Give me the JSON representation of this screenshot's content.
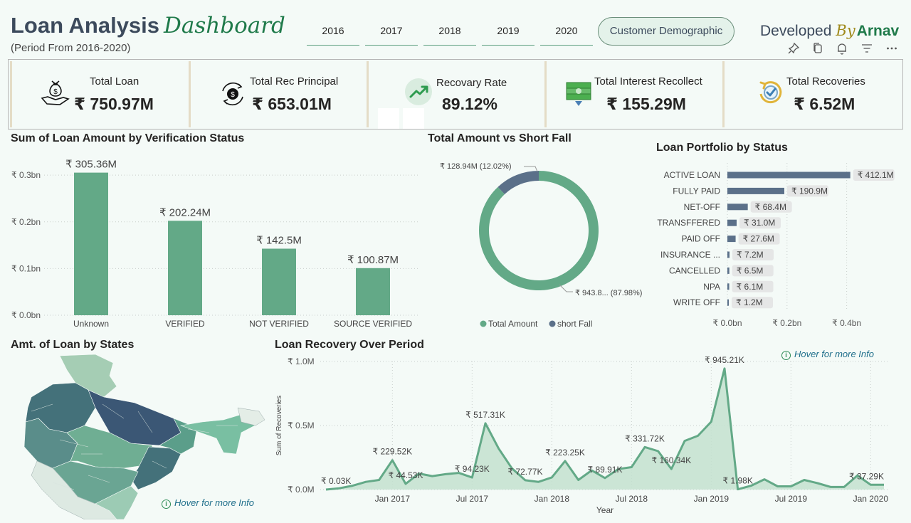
{
  "header": {
    "title_main": "Loan Analysis",
    "title_accent": "Dashboard",
    "subtitle": "(Period From 2016-2020)",
    "year_tabs": [
      "2016",
      "2017",
      "2018",
      "2019",
      "2020"
    ],
    "demographic_button": "Customer Demographic",
    "developed_label": "Developed",
    "by_label": "By",
    "author": "Arnav",
    "toolbar_icons": [
      "pin-icon",
      "copy-icon",
      "bell-icon",
      "filter-icon",
      "more-icon"
    ]
  },
  "kpis": [
    {
      "label": "Total Loan",
      "value": "₹ 750.97M",
      "icon": "money-bag-hand-icon"
    },
    {
      "label": "Total Rec Principal",
      "value": "₹ 653.01M",
      "icon": "rupee-cycle-icon"
    },
    {
      "label": "Recovary Rate",
      "value": "89.12%",
      "icon": "trend-up-icon"
    },
    {
      "label": "Total Interest Recollect",
      "value": "₹ 155.29M",
      "icon": "cash-stack-icon"
    },
    {
      "label": "Total Recoveries",
      "value": "₹ 6.52M",
      "icon": "check-cycle-icon"
    }
  ],
  "colors": {
    "green": "#63a987",
    "slate": "#5b7089",
    "bg": "#f4faf7",
    "title_accent": "#1f7a4a"
  },
  "charts": [
    {
      "panel_title": "Sum of Loan Amount by Verification Status",
      "chart_data": {
        "type": "bar",
        "categories": [
          "Unknown",
          "VERIFIED",
          "NOT VERIFIED",
          "SOURCE VERIFIED"
        ],
        "values": [
          305.36,
          202.24,
          142.5,
          100.87
        ],
        "data_labels": [
          "₹ 305.36M",
          "₹ 202.24M",
          "₹ 142.5M",
          "₹ 100.87M"
        ],
        "ytick_values": [
          0,
          100,
          200,
          300
        ],
        "ytick_labels": [
          "₹ 0.0bn",
          "₹ 0.1bn",
          "₹ 0.2bn",
          "₹ 0.3bn"
        ],
        "ylim": [
          0,
          320
        ],
        "grid": true
      }
    },
    {
      "panel_title": "Total Amount vs Short Fall",
      "chart_data": {
        "type": "pie",
        "categories": [
          "Total Amount",
          "short Fall"
        ],
        "values": [
          943.8,
          128.94
        ],
        "data_labels": [
          "₹ 943.8... (87.98%)",
          "₹ 128.94M (12.02%)"
        ],
        "colors": [
          "#63a987",
          "#5b7089"
        ],
        "legend_position": "bottom"
      }
    },
    {
      "panel_title": "Loan Portfolio by Status",
      "chart_data": {
        "type": "bar",
        "orientation": "horizontal",
        "categories": [
          "ACTIVE LOAN",
          "FULLY PAID",
          "NET-OFF",
          "TRANSFFERED",
          "PAID OFF",
          "INSURANCE ...",
          "CANCELLED",
          "NPA",
          "WRITE OFF"
        ],
        "values": [
          412.1,
          190.9,
          68.4,
          31.0,
          27.6,
          7.2,
          6.5,
          6.1,
          1.2
        ],
        "data_labels": [
          "₹ 412.1M",
          "₹ 190.9M",
          "₹ 68.4M",
          "₹ 31.0M",
          "₹ 27.6M",
          "₹ 7.2M",
          "₹ 6.5M",
          "₹ 6.1M",
          "₹ 1.2M"
        ],
        "xtick_values": [
          0,
          200,
          400
        ],
        "xtick_labels": [
          "₹ 0.0bn",
          "₹ 0.2bn",
          "₹ 0.4bn"
        ],
        "xlim": [
          0,
          420
        ]
      }
    },
    {
      "panel_title": "Amt. of Loan by States",
      "hover_text": "Hover for more Info"
    },
    {
      "panel_title": "Loan Recovery Over Period",
      "hover_text": "Hover for more Info",
      "chart_data": {
        "type": "area",
        "xlabel": "Year",
        "ylabel": "Sum of Recoveries",
        "x": [
          "2016-08",
          "2016-09",
          "2016-10",
          "2016-11",
          "2016-12",
          "2017-01",
          "2017-02",
          "2017-03",
          "2017-04",
          "2017-05",
          "2017-06",
          "2017-07",
          "2017-08",
          "2017-09",
          "2017-10",
          "2017-11",
          "2017-12",
          "2018-01",
          "2018-02",
          "2018-03",
          "2018-04",
          "2018-05",
          "2018-06",
          "2018-07",
          "2018-08",
          "2018-09",
          "2018-10",
          "2018-11",
          "2018-12",
          "2019-01",
          "2019-02",
          "2019-03",
          "2019-04",
          "2019-05",
          "2019-06",
          "2019-07",
          "2019-08",
          "2019-09",
          "2019-10",
          "2019-11",
          "2019-12",
          "2020-01",
          "2020-02"
        ],
        "values": [
          0.03,
          10,
          30,
          60,
          75,
          229.52,
          44.53,
          125,
          105,
          120,
          130,
          94.23,
          517.31,
          320,
          165,
          72.77,
          60,
          95,
          223.25,
          75,
          150,
          89.91,
          160,
          175,
          331.72,
          300,
          160.34,
          380,
          420,
          530,
          945.21,
          1.98,
          30,
          80,
          25,
          25,
          75,
          50,
          20,
          20,
          110,
          37.29,
          37.29
        ],
        "value_units": "K",
        "data_labels": [
          {
            "x": "2016-08",
            "text": "₹ 0.03K"
          },
          {
            "x": "2017-01",
            "text": "₹ 229.52K"
          },
          {
            "x": "2017-02",
            "text": "₹ 44.53K"
          },
          {
            "x": "2017-07",
            "text": "₹ 94.23K"
          },
          {
            "x": "2017-08",
            "text": "₹ 517.31K"
          },
          {
            "x": "2017-11",
            "text": "₹ 72.77K"
          },
          {
            "x": "2018-02",
            "text": "₹ 223.25K"
          },
          {
            "x": "2018-05",
            "text": "₹ 89.91K"
          },
          {
            "x": "2018-08",
            "text": "₹ 331.72K"
          },
          {
            "x": "2018-10",
            "text": "₹ 160.34K"
          },
          {
            "x": "2019-02",
            "text": "₹ 945.21K"
          },
          {
            "x": "2019-03",
            "text": "₹ 1.98K"
          },
          {
            "x": "2020-02",
            "text": "₹ 37.29K"
          }
        ],
        "xtick_labels": [
          "Jan 2017",
          "Jul 2017",
          "Jan 2018",
          "Jul 2018",
          "Jan 2019",
          "Jul 2019",
          "Jan 2020"
        ],
        "xtick_x": [
          "2017-01",
          "2017-07",
          "2018-01",
          "2018-07",
          "2019-01",
          "2019-07",
          "2020-01"
        ],
        "ytick_values": [
          0,
          500,
          1000
        ],
        "ytick_labels": [
          "₹ 0.0M",
          "₹ 0.5M",
          "₹ 1.0M"
        ],
        "ylim": [
          0,
          1000
        ],
        "grid": true
      }
    }
  ]
}
